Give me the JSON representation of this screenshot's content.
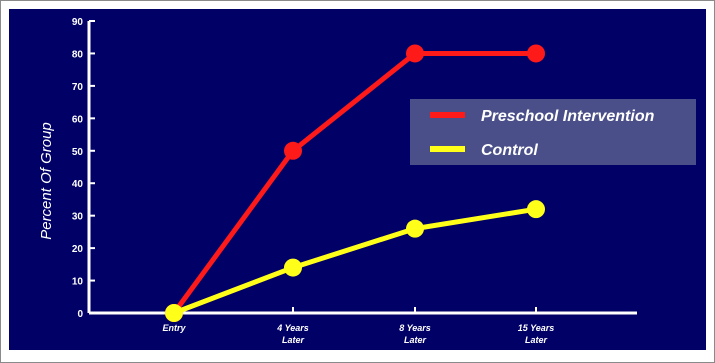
{
  "chart_data": {
    "type": "line",
    "title": "",
    "ylabel": "Percent Of Group",
    "xlabel": "",
    "ylim": [
      0,
      90
    ],
    "yticks": [
      "0",
      "10",
      "20",
      "30",
      "40",
      "50",
      "60",
      "70",
      "80",
      "90"
    ],
    "categories": [
      [
        "Entry"
      ],
      [
        "4 Years",
        "Later"
      ],
      [
        "8 Years",
        "Later"
      ],
      [
        "15 Years",
        "Later"
      ]
    ],
    "series": [
      {
        "name": "Preschool Intervention",
        "color": "#ff1a1a",
        "values": [
          0,
          50,
          80,
          80
        ]
      },
      {
        "name": "Control",
        "color": "#ffff1a",
        "values": [
          0,
          14,
          26,
          32
        ]
      }
    ],
    "legend": "right",
    "colors": {
      "background": "#000066",
      "axis": "#ffffff",
      "text": "#ffffff",
      "legend_box": "#4a4f8a"
    }
  }
}
